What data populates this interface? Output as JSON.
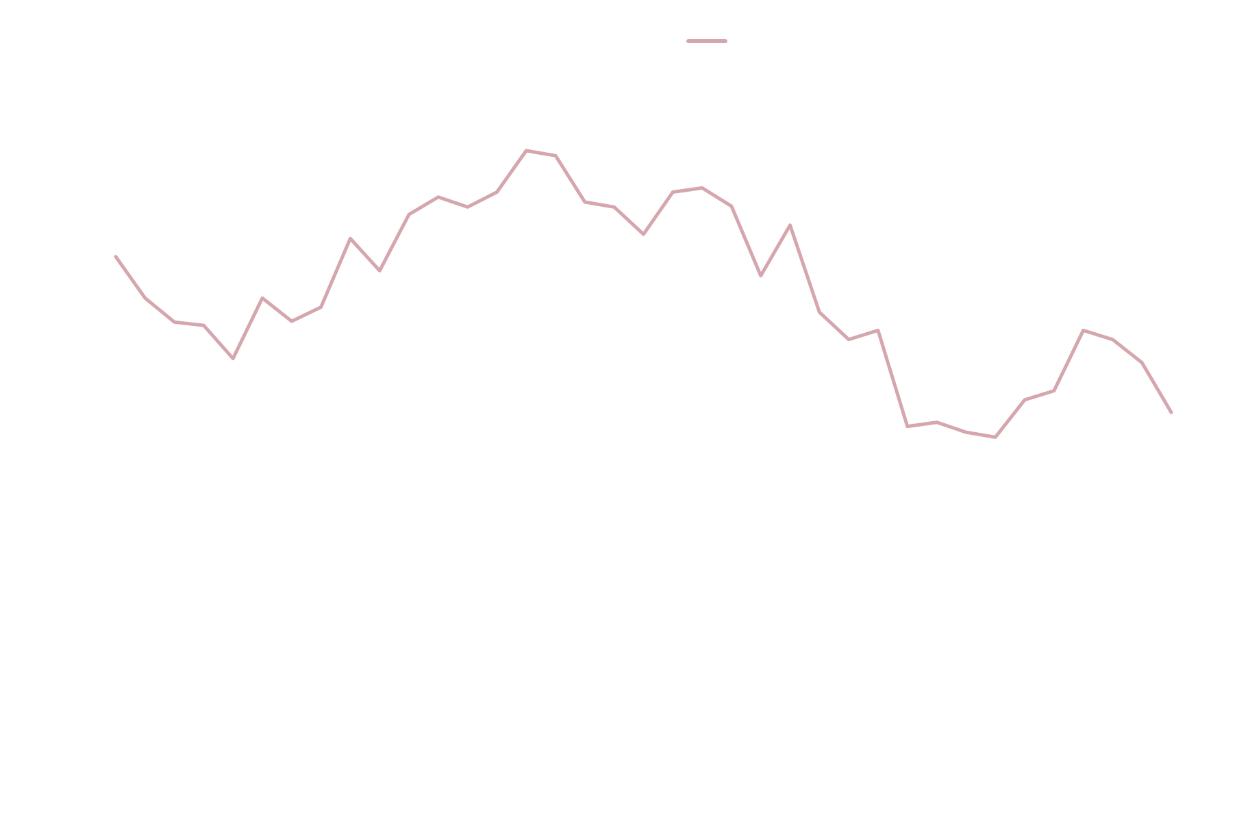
{
  "chart_data": {
    "type": "line",
    "categories": [
      null,
      null,
      null,
      null,
      null,
      null,
      null,
      null,
      null,
      null,
      null,
      null,
      null,
      null,
      null,
      null,
      null,
      null,
      null,
      null,
      null,
      null,
      null,
      null,
      null,
      null,
      null,
      null,
      null,
      null,
      null,
      null,
      null,
      null,
      null,
      null,
      null
    ],
    "series": [
      {
        "color": "#d5a6ad",
        "values": [
          69.0,
          64.0,
          61.1,
          60.7,
          56.7,
          64.0,
          61.2,
          62.9,
          71.2,
          67.3,
          74.1,
          76.2,
          75.0,
          76.8,
          81.8,
          81.2,
          75.6,
          75.0,
          71.7,
          76.8,
          77.3,
          75.1,
          66.7,
          72.8,
          62.3,
          59.0,
          60.1,
          48.5,
          49.0,
          47.8,
          47.2,
          51.7,
          52.8,
          60.1,
          59.0,
          56.2,
          50.2
        ]
      }
    ],
    "ylim": [
      0,
      100
    ],
    "legend": "top"
  }
}
